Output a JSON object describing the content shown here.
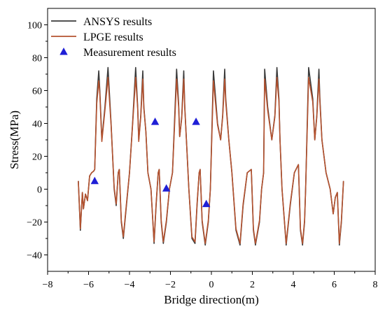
{
  "chart_data": {
    "type": "line",
    "title": "",
    "xlabel": "Bridge direction(m)",
    "ylabel": "Stress(MPa)",
    "xlim": [
      -8,
      8
    ],
    "ylim": [
      -50,
      110
    ],
    "xticks": [
      -8,
      -6,
      -4,
      -2,
      0,
      2,
      4,
      6,
      8
    ],
    "yticks": [
      -40,
      -20,
      0,
      20,
      40,
      60,
      80,
      100
    ],
    "xtick_labels": [
      "−8",
      "−6",
      "−4",
      "−2",
      "0",
      "2",
      "4",
      "6",
      "8"
    ],
    "ytick_labels": [
      "−40",
      "−20",
      "0",
      "20",
      "40",
      "60",
      "80",
      "100"
    ],
    "grid": false,
    "legend_position": "top-left",
    "series": [
      {
        "name": "ANSYS results",
        "color": "#3a3a3a",
        "type": "line",
        "x": [
          -6.5,
          -6.4,
          -6.3,
          -6.25,
          -6.15,
          -6.05,
          -5.95,
          -5.85,
          -5.75,
          -5.7,
          -5.6,
          -5.5,
          -5.45,
          -5.35,
          -5.2,
          -5.05,
          -4.9,
          -4.75,
          -4.65,
          -4.55,
          -4.5,
          -4.4,
          -4.3,
          -4.15,
          -4.0,
          -3.85,
          -3.7,
          -3.6,
          -3.55,
          -3.45,
          -3.35,
          -3.3,
          -3.2,
          -3.1,
          -2.95,
          -2.8,
          -2.7,
          -2.6,
          -2.55,
          -2.45,
          -2.35,
          -2.2,
          -2.05,
          -1.9,
          -1.7,
          -1.6,
          -1.55,
          -1.45,
          -1.35,
          -1.3,
          -1.2,
          -1.1,
          -0.95,
          -0.8,
          -0.7,
          -0.6,
          -0.55,
          -0.45,
          -0.3,
          -0.15,
          -0.05,
          0.1,
          0.3,
          0.45,
          0.55,
          0.65,
          0.7,
          0.85,
          1.0,
          1.2,
          1.4,
          1.55,
          1.75,
          1.95,
          2.05,
          2.15,
          2.35,
          2.45,
          2.55,
          2.6,
          2.75,
          2.95,
          3.1,
          3.2,
          3.3,
          3.35,
          3.45,
          3.65,
          3.85,
          4.05,
          4.25,
          4.35,
          4.45,
          4.55,
          4.6,
          4.75,
          4.95,
          5.05,
          5.15,
          5.25,
          5.3,
          5.4,
          5.6,
          5.8,
          5.95,
          6.05,
          6.15,
          6.25,
          6.35,
          6.45
        ],
        "y": [
          5,
          -25,
          -2,
          -12,
          -3,
          -7,
          8,
          10,
          11,
          12,
          55,
          72,
          60,
          30,
          50,
          74,
          40,
          0,
          -10,
          10,
          12,
          -20,
          -30,
          -10,
          10,
          40,
          74,
          50,
          30,
          45,
          72,
          50,
          35,
          10,
          0,
          -33,
          -10,
          10,
          12,
          -20,
          -33,
          -20,
          0,
          10,
          73,
          52,
          32,
          44,
          72,
          50,
          25,
          0,
          -30,
          -33,
          -10,
          10,
          12,
          -20,
          -34,
          -20,
          0,
          72,
          40,
          30,
          45,
          73,
          55,
          30,
          10,
          -25,
          -34,
          -10,
          10,
          12,
          -25,
          -34,
          -20,
          0,
          10,
          73,
          50,
          30,
          45,
          74,
          55,
          30,
          0,
          -34,
          -10,
          10,
          15,
          -25,
          -34,
          -20,
          0,
          74,
          55,
          30,
          45,
          73,
          55,
          30,
          10,
          0,
          -15,
          -5,
          -2,
          -34,
          -20,
          5
        ]
      },
      {
        "name": "LPGE results",
        "color": "#b5522f",
        "type": "line",
        "x": [
          -6.5,
          -6.4,
          -6.3,
          -6.25,
          -6.15,
          -6.05,
          -5.95,
          -5.85,
          -5.75,
          -5.7,
          -5.6,
          -5.5,
          -5.45,
          -5.35,
          -5.2,
          -5.05,
          -4.9,
          -4.75,
          -4.65,
          -4.55,
          -4.5,
          -4.4,
          -4.3,
          -4.15,
          -4.0,
          -3.85,
          -3.7,
          -3.6,
          -3.55,
          -3.45,
          -3.35,
          -3.3,
          -3.2,
          -3.1,
          -2.95,
          -2.8,
          -2.7,
          -2.6,
          -2.55,
          -2.45,
          -2.35,
          -2.2,
          -2.05,
          -1.9,
          -1.7,
          -1.6,
          -1.55,
          -1.45,
          -1.35,
          -1.3,
          -1.2,
          -1.1,
          -0.95,
          -0.8,
          -0.7,
          -0.6,
          -0.55,
          -0.45,
          -0.3,
          -0.15,
          -0.05,
          0.1,
          0.3,
          0.45,
          0.55,
          0.65,
          0.7,
          0.85,
          1.0,
          1.2,
          1.4,
          1.55,
          1.75,
          1.95,
          2.05,
          2.15,
          2.35,
          2.45,
          2.55,
          2.6,
          2.75,
          2.95,
          3.1,
          3.2,
          3.3,
          3.35,
          3.45,
          3.65,
          3.85,
          4.05,
          4.25,
          4.35,
          4.45,
          4.55,
          4.6,
          4.75,
          4.95,
          5.05,
          5.15,
          5.25,
          5.3,
          5.4,
          5.6,
          5.8,
          5.95,
          6.05,
          6.15,
          6.25,
          6.35,
          6.45
        ],
        "y": [
          5,
          -24,
          -2,
          -12,
          -3,
          -7,
          8,
          10,
          11,
          12,
          52,
          66,
          58,
          29,
          48,
          68,
          39,
          1,
          -9,
          10,
          12,
          -19,
          -29,
          -9,
          10,
          39,
          68,
          49,
          29,
          44,
          67,
          49,
          35,
          10,
          0,
          -32,
          -9,
          10,
          12,
          -19,
          -32,
          -19,
          0,
          10,
          67,
          50,
          32,
          43,
          67,
          49,
          25,
          0,
          -29,
          -32,
          -9,
          10,
          12,
          -19,
          -33,
          -19,
          0,
          66,
          39,
          30,
          44,
          67,
          53,
          30,
          10,
          -24,
          -33,
          -9,
          10,
          12,
          -24,
          -33,
          -19,
          0,
          10,
          67,
          48,
          30,
          44,
          68,
          53,
          30,
          0,
          -33,
          -9,
          10,
          15,
          -24,
          -33,
          -19,
          0,
          68,
          53,
          30,
          44,
          67,
          53,
          30,
          10,
          0,
          -15,
          -5,
          -2,
          -33,
          -19,
          5
        ]
      },
      {
        "name": "Measurement results",
        "color": "#1f1fd6",
        "type": "scatter",
        "x": [
          -5.7,
          -2.75,
          -2.2,
          -0.75,
          -0.25
        ],
        "y": [
          5,
          41,
          0.5,
          41,
          -9
        ]
      }
    ]
  }
}
